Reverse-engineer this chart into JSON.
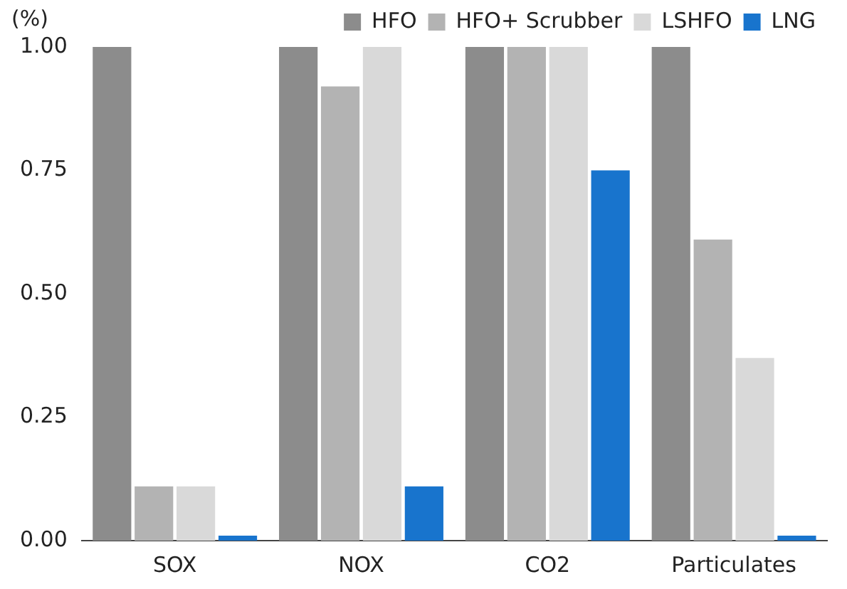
{
  "chart_data": {
    "type": "bar",
    "ylabel": "(%)",
    "categories": [
      "SOX",
      "NOX",
      "CO2",
      "Particulates"
    ],
    "series": [
      {
        "name": "HFO",
        "color": "#8c8c8c",
        "values": [
          1,
          1,
          1,
          1
        ]
      },
      {
        "name": "HFO+ Scrubber",
        "color": "#b3b3b3",
        "values": [
          0.11,
          0.92,
          1,
          0.61
        ]
      },
      {
        "name": "LSHFO",
        "color": "#d9d9d9",
        "values": [
          0.11,
          1,
          1,
          0.37
        ]
      },
      {
        "name": "LNG",
        "color": "#1874cd",
        "values": [
          0.01,
          0.11,
          0.75,
          0.01
        ]
      }
    ],
    "ylim": [
      0,
      1
    ],
    "yticks": [
      {
        "value": 0,
        "label": "0.00"
      },
      {
        "value": 0.25,
        "label": "0.25"
      },
      {
        "value": 0.5,
        "label": "0.50"
      },
      {
        "value": 0.75,
        "label": "0.75"
      },
      {
        "value": 1,
        "label": "1.00"
      }
    ],
    "grid": false,
    "legend": "top right"
  }
}
